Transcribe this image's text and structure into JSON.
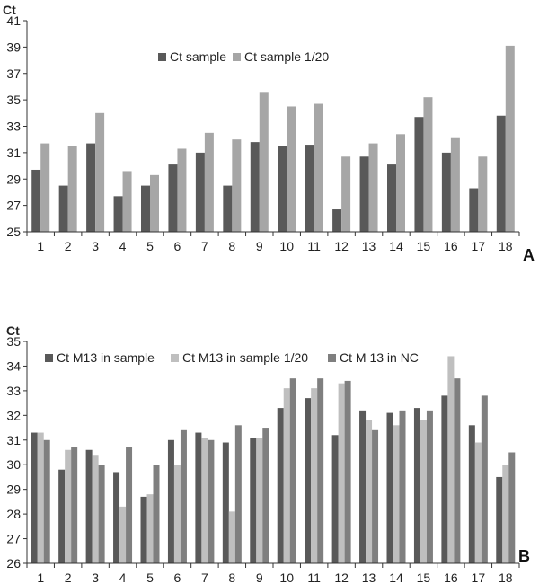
{
  "chart_data": [
    {
      "type": "bar",
      "panel_label": "A",
      "ylabel": "Ct",
      "ylim": [
        25,
        41
      ],
      "yticks": [
        25,
        27,
        29,
        31,
        33,
        35,
        37,
        39,
        41
      ],
      "legend_position": "top-center",
      "categories": [
        "1",
        "2",
        "3",
        "4",
        "5",
        "6",
        "7",
        "8",
        "9",
        "10",
        "11",
        "12",
        "13",
        "14",
        "15",
        "16",
        "17",
        "18"
      ],
      "series": [
        {
          "name": "Ct sample",
          "color": "#595959",
          "values": [
            29.7,
            28.5,
            31.7,
            27.7,
            28.5,
            30.1,
            31.0,
            28.5,
            31.8,
            31.5,
            31.6,
            26.7,
            30.7,
            30.1,
            33.7,
            31.0,
            28.3,
            33.8
          ]
        },
        {
          "name": "Ct sample 1/20",
          "color": "#a6a6a6",
          "values": [
            31.7,
            31.5,
            34.0,
            29.6,
            29.3,
            31.3,
            32.5,
            32.0,
            35.6,
            34.5,
            34.7,
            30.7,
            31.7,
            32.4,
            35.2,
            32.1,
            30.7,
            39.1
          ]
        }
      ]
    },
    {
      "type": "bar",
      "panel_label": "B",
      "ylabel": "Ct",
      "ylim": [
        26,
        35
      ],
      "yticks": [
        26,
        27,
        28,
        29,
        30,
        31,
        32,
        33,
        34,
        35
      ],
      "legend_position": "top",
      "categories": [
        "1",
        "2",
        "3",
        "4",
        "5",
        "6",
        "7",
        "8",
        "9",
        "10",
        "11",
        "12",
        "13",
        "14",
        "15",
        "16",
        "17",
        "18"
      ],
      "series": [
        {
          "name": "Ct M13 in sample",
          "color": "#595959",
          "values": [
            31.3,
            29.8,
            30.6,
            29.7,
            28.7,
            31.0,
            31.3,
            30.9,
            31.1,
            32.3,
            32.7,
            31.2,
            32.2,
            32.1,
            32.3,
            32.8,
            31.6,
            29.5
          ]
        },
        {
          "name": "Ct M13 in sample 1/20",
          "color": "#bfbfbf",
          "values": [
            31.3,
            30.6,
            30.4,
            28.3,
            28.8,
            30.0,
            31.1,
            28.1,
            31.1,
            33.1,
            33.1,
            33.3,
            31.8,
            31.6,
            31.8,
            34.4,
            30.9,
            30.0
          ]
        },
        {
          "name": "Ct M 13  in NC",
          "color": "#7f7f7f",
          "values": [
            31.0,
            30.7,
            30.0,
            30.7,
            30.0,
            31.4,
            31.0,
            31.6,
            31.5,
            33.5,
            33.5,
            33.4,
            31.4,
            32.2,
            32.2,
            33.5,
            32.8,
            30.5
          ]
        }
      ]
    }
  ]
}
